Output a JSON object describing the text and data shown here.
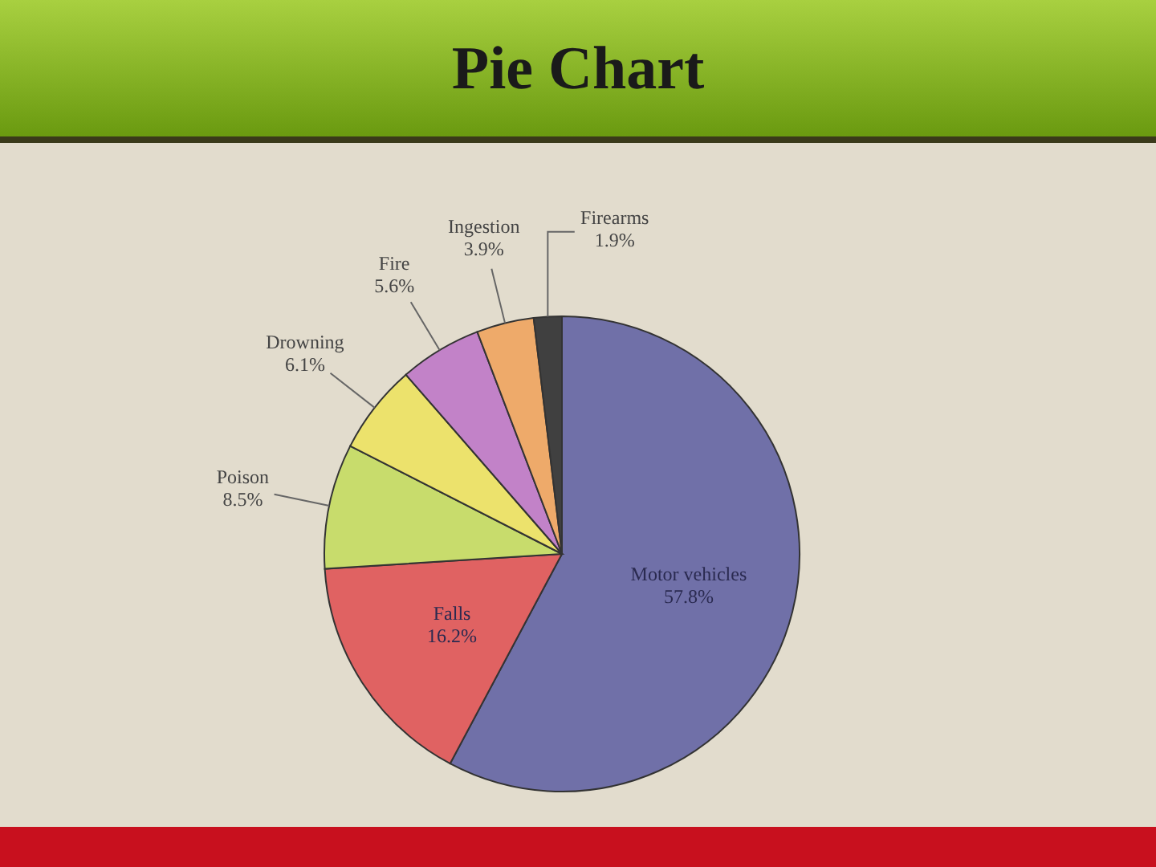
{
  "chart_data": {
    "type": "pie",
    "title": "Pie Chart",
    "categories": [
      "Motor vehicles",
      "Falls",
      "Poison",
      "Drowning",
      "Fire",
      "Ingestion",
      "Firearms"
    ],
    "values": [
      57.8,
      16.2,
      8.5,
      6.1,
      5.6,
      3.9,
      1.9
    ],
    "value_labels": [
      "57.8%",
      "16.2%",
      "8.5%",
      "6.1%",
      "5.6%",
      "3.9%",
      "1.9%"
    ],
    "colors": [
      "#7070a8",
      "#e06262",
      "#c8dc6c",
      "#ece26c",
      "#c282c8",
      "#eeaa6a",
      "#404040"
    ]
  }
}
